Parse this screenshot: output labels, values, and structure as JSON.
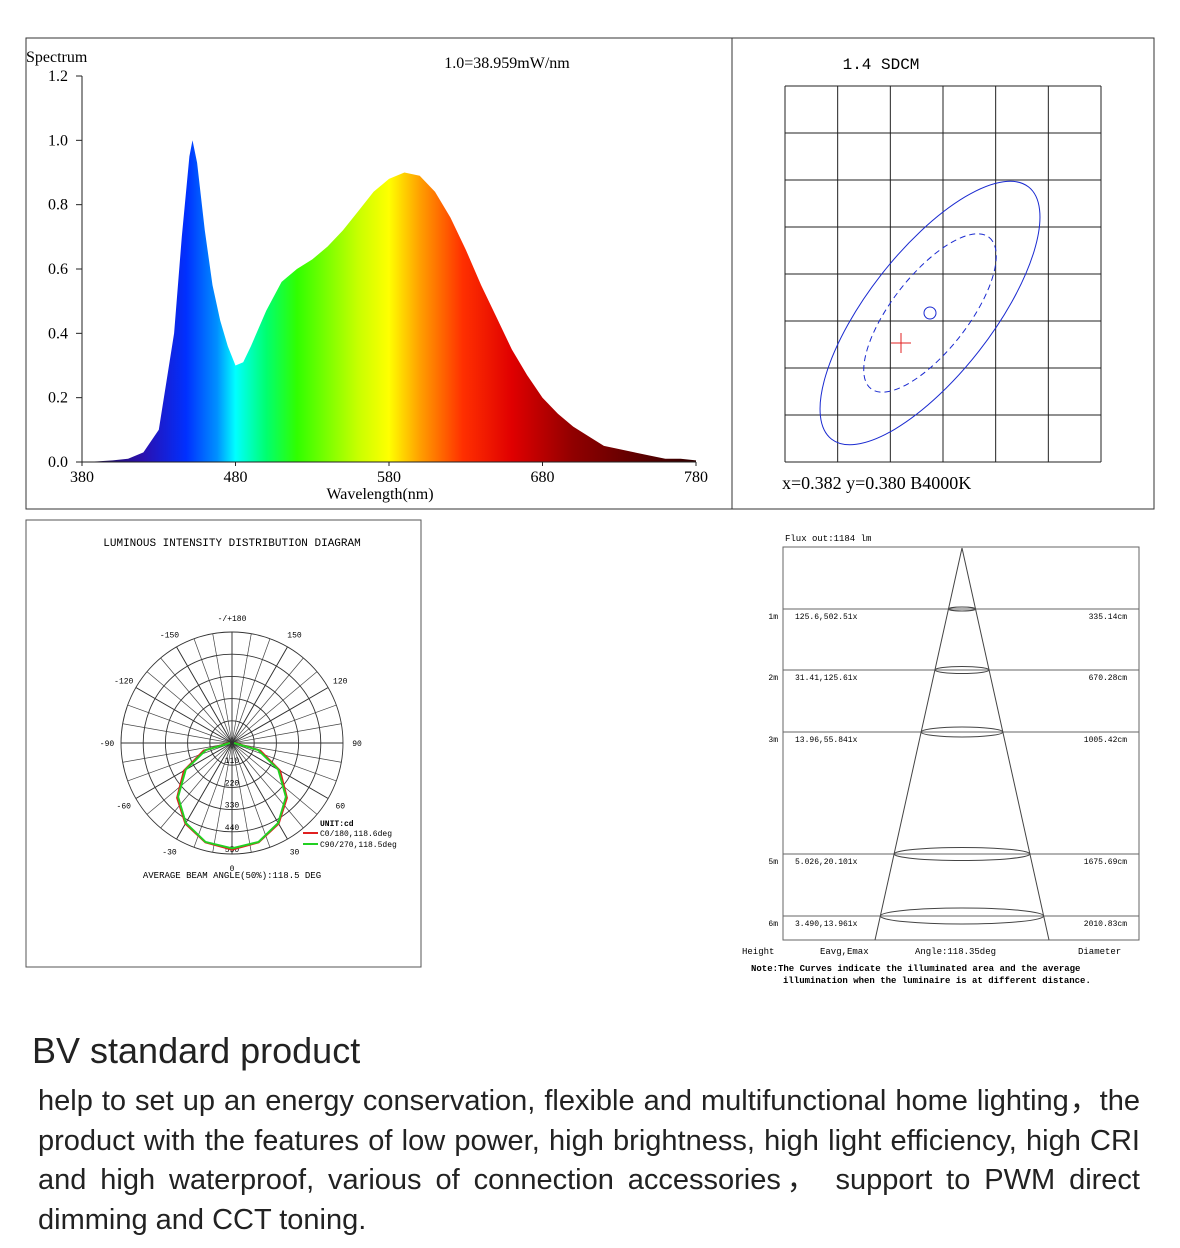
{
  "chart_data": [
    {
      "type": "area",
      "title": "Spectrum",
      "subtitle": "1.0=38.959mW/nm",
      "x_label": "Wavelength(nm)",
      "x": [
        380,
        390,
        400,
        410,
        420,
        430,
        440,
        445,
        450,
        452,
        455,
        460,
        465,
        470,
        475,
        480,
        485,
        490,
        500,
        510,
        520,
        530,
        540,
        550,
        560,
        570,
        580,
        590,
        600,
        610,
        620,
        630,
        640,
        650,
        660,
        670,
        680,
        690,
        700,
        710,
        720,
        730,
        740,
        750,
        760,
        770,
        780
      ],
      "values": [
        0,
        0.002,
        0.005,
        0.01,
        0.03,
        0.1,
        0.4,
        0.7,
        0.95,
        1.0,
        0.93,
        0.72,
        0.55,
        0.44,
        0.36,
        0.3,
        0.31,
        0.36,
        0.47,
        0.56,
        0.6,
        0.63,
        0.67,
        0.72,
        0.78,
        0.84,
        0.88,
        0.9,
        0.89,
        0.84,
        0.76,
        0.66,
        0.55,
        0.45,
        0.35,
        0.27,
        0.2,
        0.15,
        0.11,
        0.08,
        0.05,
        0.04,
        0.03,
        0.02,
        0.01,
        0.01,
        0.005
      ],
      "xlim": [
        380,
        780
      ],
      "ylim": [
        0,
        1.2
      ],
      "xticks": [
        380,
        480,
        580,
        680,
        780
      ],
      "yticks": [
        {
          "value": 0,
          "label": "0.0"
        },
        0.2,
        0.4,
        0.6,
        0.8,
        {
          "value": 1,
          "label": "1.0"
        },
        1.2
      ]
    },
    {
      "type": "polar",
      "title": "LUMINOUS INTENSITY DISTRIBUTION DIAGRAM",
      "unit_label": "UNIT:cd",
      "footnote": "AVERAGE BEAM ANGLE(50%):118.5 DEG",
      "angles": [
        -90,
        -75,
        -60,
        -45,
        -30,
        -15,
        0,
        15,
        30,
        45,
        60,
        75,
        90
      ],
      "series": [
        {
          "name": "C0/180,118.6deg",
          "color": "#e02020",
          "values": [
            15,
            145,
            275,
            385,
            462,
            510,
            528,
            510,
            462,
            385,
            275,
            145,
            15
          ]
        },
        {
          "name": "C90/270,118.5deg",
          "color": "#22d022",
          "values": [
            10,
            135,
            265,
            378,
            458,
            508,
            522,
            508,
            458,
            378,
            265,
            135,
            10
          ]
        }
      ],
      "rlim": [
        0,
        550
      ],
      "rticks": [
        110,
        220,
        330,
        440,
        550
      ],
      "angle_ticks": [
        0,
        30,
        60,
        90,
        120,
        150,
        {
          "value": 180,
          "label": "-/+180"
        },
        -150,
        -120,
        -90,
        -60,
        -30
      ]
    }
  ],
  "sdcm": {
    "title": "1.4 SDCM",
    "coordinates": "x=0.382 y=0.380 B4000K"
  },
  "beam": {
    "flux": "Flux out:1184 lm",
    "rows": [
      [
        "1m",
        "125.6,502.51x",
        "335.14cm"
      ],
      [
        "2m",
        "31.41,125.61x",
        "670.28cm"
      ],
      [
        "3m",
        "13.96,55.841x",
        "1005.42cm"
      ],
      [
        "5m",
        "5.026,20.101x",
        "1675.69cm"
      ],
      [
        "6m",
        "3.490,13.961x",
        "2010.83cm"
      ]
    ],
    "headers": [
      "Height",
      "Eavg,Emax",
      "Angle:118.35deg",
      "Diameter"
    ],
    "note": [
      "Note:The Curves indicate the illuminated area and the average",
      "illumination when the luminaire is at different distance."
    ]
  },
  "product": {
    "title": "BV standard product",
    "text": "help to set up an energy conservation, flexible and multifunctional home lighting，the product with the features of low power, high brightness, high light efficiency, high CRI and high waterproof, various of connection accessories， support to PWM direct dimming and CCT toning."
  }
}
